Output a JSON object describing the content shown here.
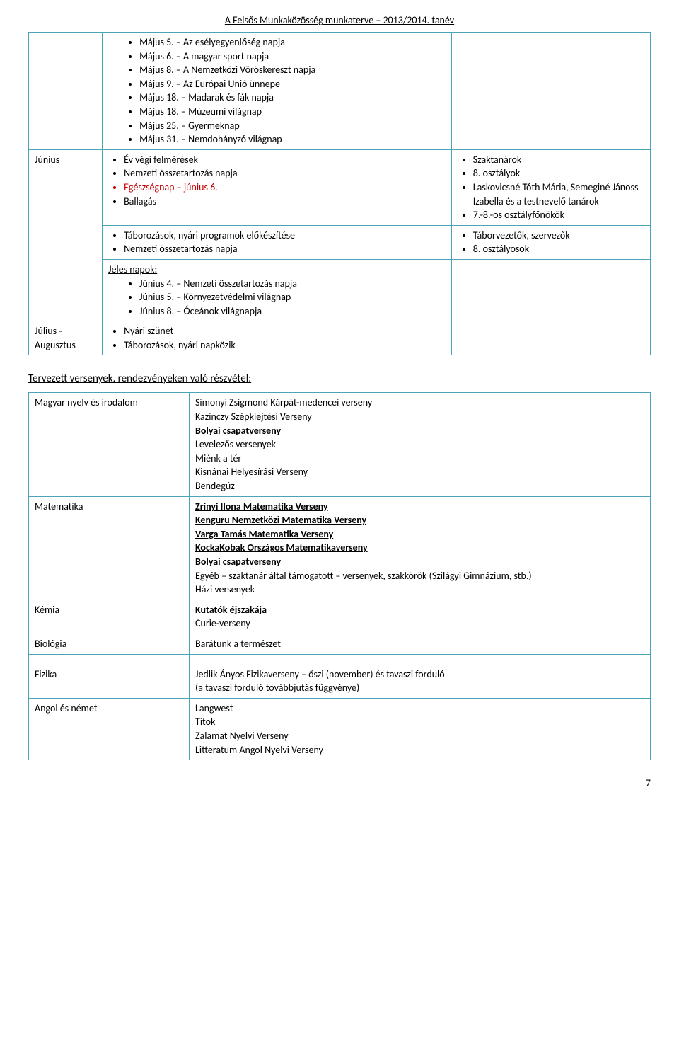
{
  "header": "A Felsős Munkaközösség munkaterve – 2013/2014. tanév",
  "schedule": {
    "may_items": [
      "Május 5. – Az esélyegyenlőség napja",
      "Május 6. – A magyar sport napja",
      "Május 8. – A Nemzetközi Vöröskereszt napja",
      "Május 9. – Az Európai Unió ünnepe",
      "Május 18. – Madarak és fák napja",
      "Május 18. – Múzeumi világnap",
      "Május 25. – Gyermeknap",
      "Május 31. – Nemdohányzó világnap"
    ],
    "june_label": "Június",
    "june_first_block": {
      "left": [
        {
          "text": "Év végi felmérések"
        },
        {
          "text": "Nemzeti összetartozás napja"
        },
        {
          "text": "Egészségnap – június 6.",
          "red": true
        },
        {
          "text": "Ballagás"
        }
      ],
      "right": [
        "Szaktanárok",
        "8. osztályok",
        "Laskovicsné Tóth Mária, Semeginé Jánoss Izabella és a testnevelő tanárok",
        "7.-8.-os osztályfőnökök"
      ]
    },
    "june_second_block": {
      "left": [
        "Táborozások, nyári programok előkészítése",
        "Nemzeti összetartozás napja"
      ],
      "right": [
        "Táborvezetők, szervezők",
        "8. osztályosok"
      ]
    },
    "june_jeles_label": "Jeles napok:",
    "june_jeles_items": [
      "Június 4. – Nemzeti összetartozás napja",
      "Június 5. – Környezetvédelmi világnap",
      "Június 8. – Óceánok világnapja"
    ],
    "july_label": "Július - Augusztus",
    "july_items": [
      "Nyári szünet",
      "Táborozások, nyári napközik"
    ]
  },
  "competitions": {
    "title": "Tervezett versenyek, rendezvényeken való részvétel:",
    "rows": [
      {
        "subject": "Magyar nyelv és irodalom",
        "items": [
          {
            "text": "Simonyi Zsigmond Kárpát-medencei verseny"
          },
          {
            "text": "Kazinczy Szépkiejtési Verseny"
          },
          {
            "text": "Bolyai csapatverseny",
            "bold": true
          },
          {
            "text": "Levelezős versenyek"
          },
          {
            "text": "Miénk a tér"
          },
          {
            "text": "Kisnánai Helyesírási Verseny"
          },
          {
            "text": "Bendegúz"
          }
        ]
      },
      {
        "subject": "Matematika",
        "items": [
          {
            "text": "Zrínyi Ilona Matematika Verseny",
            "bold": true,
            "underline": true
          },
          {
            "text": "Kenguru Nemzetközi Matematika Verseny",
            "bold": true,
            "underline": true
          },
          {
            "text": "Varga Tamás Matematika Verseny",
            "bold": true,
            "underline": true
          },
          {
            "text": "KockaKobak Országos Matematikaverseny",
            "bold": true,
            "underline": true
          },
          {
            "text": "Bolyai csapatverseny",
            "bold": true,
            "underline": true
          },
          {
            "text": "Egyéb – szaktanár által támogatott – versenyek, szakkörök (Szilágyi Gimnázium, stb.)"
          },
          {
            "text": "Házi versenyek"
          }
        ]
      },
      {
        "subject": "Kémia",
        "items": [
          {
            "text": "Kutatók éjszakája",
            "bold": true,
            "underline": true
          },
          {
            "text": "Curie-verseny"
          }
        ]
      },
      {
        "subject": "Biológia",
        "items": [
          {
            "text": "Barátunk a természet"
          }
        ]
      },
      {
        "subject": "Fizika",
        "items": [
          {
            "text": "Jedlik Ányos Fizikaverseny – őszi (november) és tavaszi forduló"
          },
          {
            "text": "(a tavaszi forduló továbbjutás függvénye)"
          }
        ],
        "gap_before": true
      },
      {
        "subject": "Angol és német",
        "items": [
          {
            "text": "Langwest"
          },
          {
            "text": "Titok"
          },
          {
            "text": "Zalamat Nyelvi Verseny"
          },
          {
            "text": "Litteratum Angol Nyelvi Verseny"
          }
        ]
      }
    ]
  },
  "page_number": "7"
}
